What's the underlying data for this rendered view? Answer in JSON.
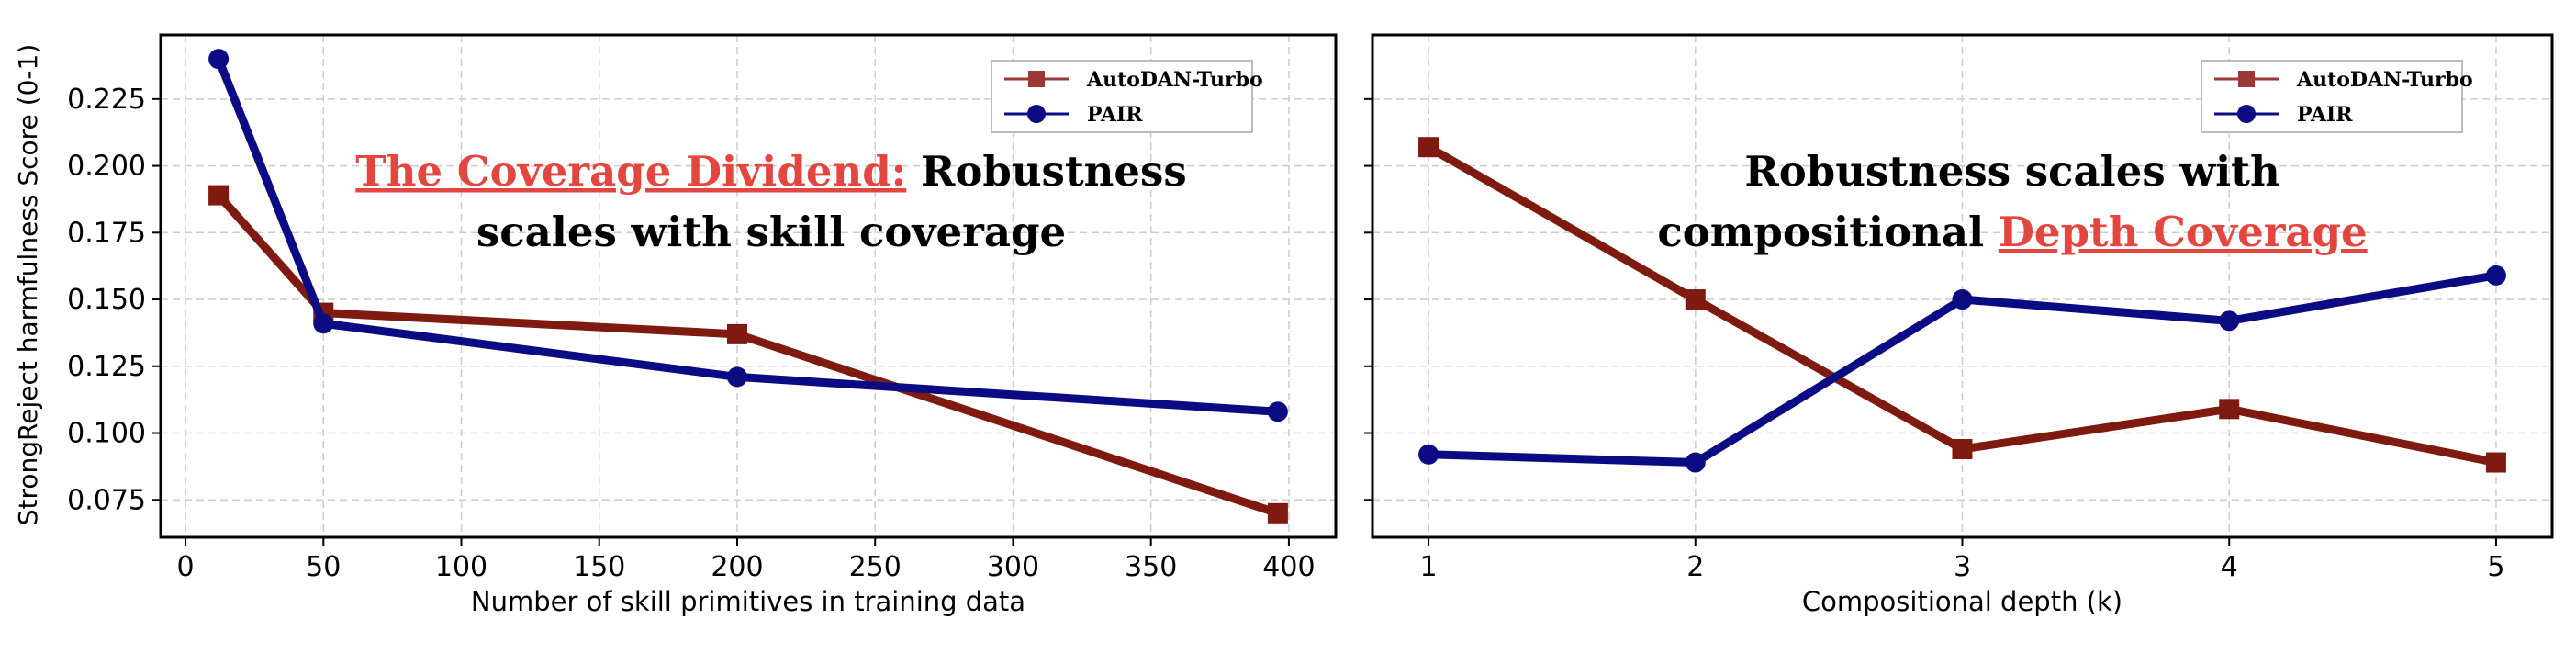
{
  "colors": {
    "autodan": "#7f1a10",
    "autodan_legend": "#9b3a35",
    "pair": "#0b0c84",
    "highlight": "#e2463f",
    "grid": "#cccccc"
  },
  "y_axis_label": "StrongReject harmfulness Score (0-1)",
  "legend": [
    "AutoDAN-Turbo",
    "PAIR"
  ],
  "chart_data": [
    {
      "type": "line",
      "title_parts": [
        {
          "text": "The Coverage Dividend:",
          "highlight": true
        },
        {
          "text": " Robustness",
          "highlight": false
        },
        {
          "text": "scales with skill coverage",
          "highlight": false
        }
      ],
      "xlabel": "Number of skill primitives in training data",
      "ylabel": "StrongReject harmfulness Score (0-1)",
      "xlim": [
        -9,
        417
      ],
      "ylim": [
        0.061,
        0.249
      ],
      "xticks": [
        "0",
        "50",
        "100",
        "150",
        "200",
        "250",
        "300",
        "350",
        "400"
      ],
      "yticks": [
        "0.075",
        "0.100",
        "0.125",
        "0.150",
        "0.175",
        "0.200",
        "0.225"
      ],
      "grid": true,
      "legend_position": "top-right",
      "x": [
        12,
        50,
        200,
        396
      ],
      "series": [
        {
          "name": "AutoDAN-Turbo",
          "marker": "square",
          "values": [
            0.189,
            0.145,
            0.137,
            0.07
          ]
        },
        {
          "name": "PAIR",
          "marker": "circle",
          "values": [
            0.24,
            0.141,
            0.121,
            0.108
          ]
        }
      ]
    },
    {
      "type": "line",
      "title_parts": [
        {
          "text": "Robustness scales with",
          "highlight": false
        },
        {
          "text": "compositional ",
          "highlight": false
        },
        {
          "text": "Depth Coverage",
          "highlight": true
        }
      ],
      "xlabel": "Compositional depth (k)",
      "ylabel": "",
      "xlim": [
        0.79,
        5.21
      ],
      "ylim": [
        0.061,
        0.249
      ],
      "xticks": [
        "1",
        "2",
        "3",
        "4",
        "5"
      ],
      "grid": true,
      "legend_position": "top-right",
      "x": [
        1,
        2,
        3,
        4,
        5
      ],
      "series": [
        {
          "name": "AutoDAN-Turbo",
          "marker": "square",
          "values": [
            0.207,
            0.15,
            0.094,
            0.109,
            0.089
          ]
        },
        {
          "name": "PAIR",
          "marker": "circle",
          "values": [
            0.092,
            0.089,
            0.15,
            0.142,
            0.159
          ]
        }
      ]
    }
  ]
}
